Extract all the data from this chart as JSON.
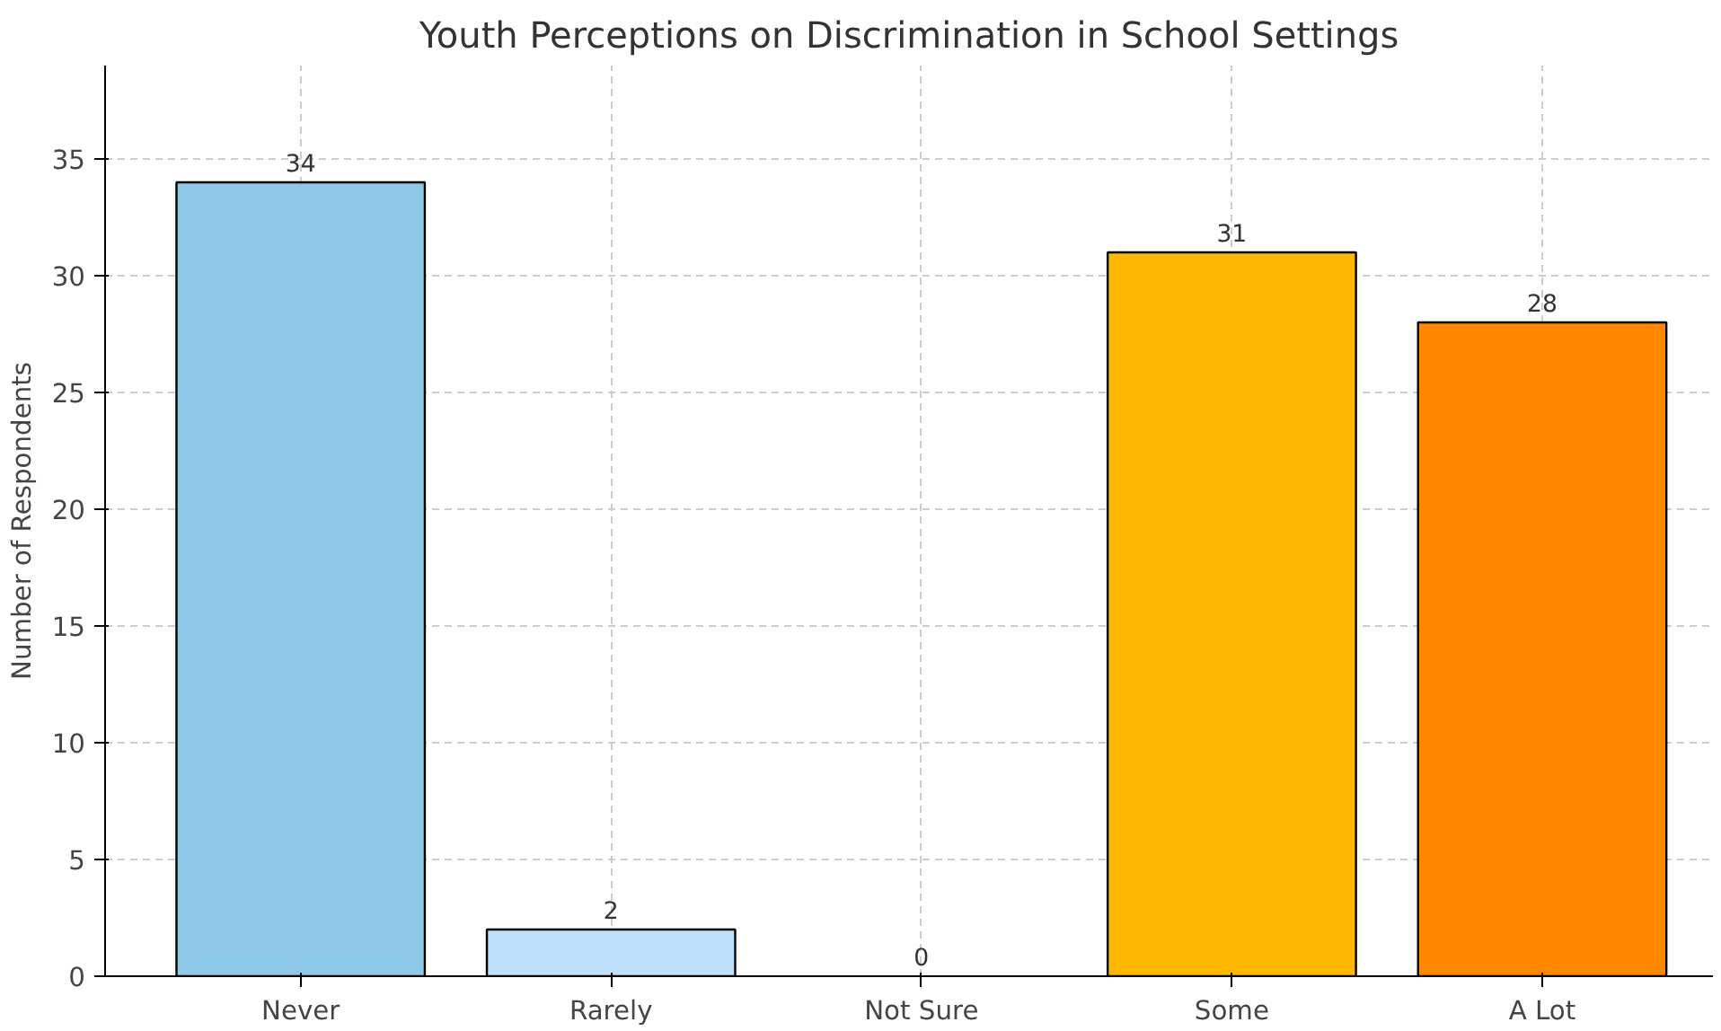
{
  "chart_data": {
    "type": "bar",
    "title": "Youth Perceptions on Discrimination in School Settings",
    "ylabel": "Number of Respondents",
    "categories": [
      "Never",
      "Rarely",
      "Not Sure",
      "Some",
      "A Lot"
    ],
    "values": [
      34,
      2,
      0,
      31,
      28
    ],
    "colors": [
      "#8ec8e6",
      "#bfe0fb",
      null,
      "#ffb700",
      "#ff8800"
    ],
    "ylim": [
      0,
      39
    ],
    "yticks": [
      0,
      5,
      10,
      15,
      20,
      25,
      30,
      35
    ],
    "grid": true,
    "data_labels": true
  }
}
